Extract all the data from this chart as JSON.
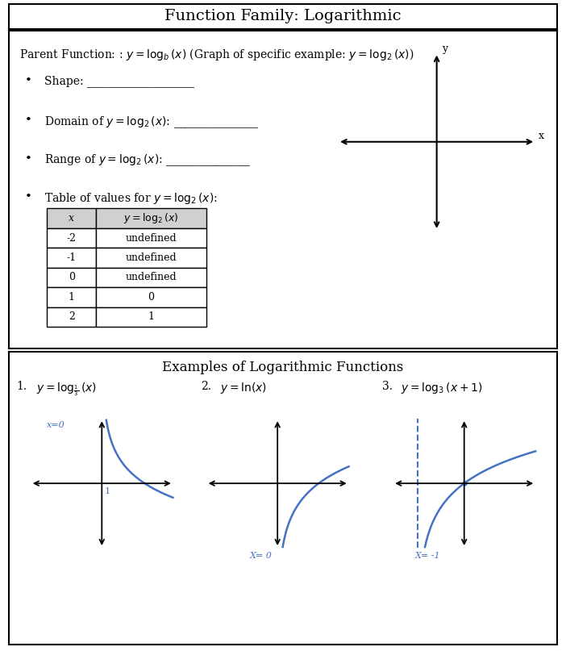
{
  "title": "Function Family: Logarithmic",
  "parent_function_line": "Parent Function: : $y = \\log_b(x)$ (Graph of specific example: $y = \\log_2(x)$)",
  "bullet1": "Shape: ___________________",
  "bullet2_pre": "Domain of ",
  "bullet2_func": "$y = \\log_2(x)$",
  "bullet2_post": ": _______________",
  "bullet3_pre": "Range of ",
  "bullet3_func": "$y = \\log_2(x)$",
  "bullet3_post": ": _______________",
  "bullet4_pre": "Table of values for ",
  "bullet4_func": "$y = \\log_2(x)$",
  "bullet4_post": ":",
  "table_x": [
    "-2",
    "-1",
    "0",
    "1",
    "2"
  ],
  "table_y": [
    "undefined",
    "undefined",
    "undefined",
    "0",
    "1"
  ],
  "table_header_x": "x",
  "table_header_y": "$y = \\log_2(x)$",
  "examples_title": "Examples of Logarithmic Functions",
  "ex1_num": "1.",
  "ex1_label": "$y = \\log_{\\frac{1}{3}}(x)$",
  "ex2_num": "2.",
  "ex2_label": "$y = \\ln(x)$",
  "ex3_num": "3.",
  "ex3_label": "$y = \\log_3(x + 1)$",
  "label_xcero1": "x=0",
  "label_1": "1",
  "label_xcero2": "X= 0",
  "label_xneg1": "X= -1",
  "bg_color": "#ffffff",
  "border_color": "#000000",
  "text_color": "#000000",
  "curve_color": "#4472C4",
  "table_header_bg": "#d0d0d0",
  "title_fontsize": 14,
  "body_fontsize": 10,
  "small_fontsize": 9,
  "curve_lw": 1.8
}
